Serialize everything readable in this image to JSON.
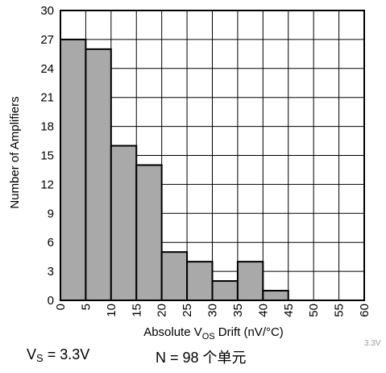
{
  "chart_data": {
    "type": "bar",
    "bins": [
      [
        0,
        5
      ],
      [
        5,
        10
      ],
      [
        10,
        15
      ],
      [
        15,
        20
      ],
      [
        20,
        25
      ],
      [
        25,
        30
      ],
      [
        30,
        35
      ],
      [
        35,
        40
      ],
      [
        40,
        45
      ],
      [
        45,
        50
      ],
      [
        50,
        55
      ],
      [
        55,
        60
      ]
    ],
    "values": [
      27,
      26,
      16,
      14,
      5,
      4,
      2,
      4,
      1,
      0,
      0,
      0
    ],
    "x_ticks": [
      "0",
      "5",
      "10",
      "15",
      "20",
      "25",
      "30",
      "35",
      "40",
      "45",
      "50",
      "55",
      "60"
    ],
    "y_ticks": [
      "0",
      "3",
      "6",
      "9",
      "12",
      "15",
      "18",
      "21",
      "24",
      "27",
      "30"
    ],
    "xlim": [
      0,
      60
    ],
    "ylim": [
      0,
      30
    ],
    "xlabel": {
      "pre": "Absolute V",
      "sub": "OS",
      "post": " Drift (nV/°C)"
    },
    "ylabel": "Number of Amplifiers",
    "grid": true,
    "bar_color": "#a9a9a9"
  },
  "watermark": "3.3V",
  "caption": {
    "vs_main": "V",
    "vs_sub": "S",
    "vs_value": " = 3.3V",
    "n_text": "N = 98 个单元"
  }
}
